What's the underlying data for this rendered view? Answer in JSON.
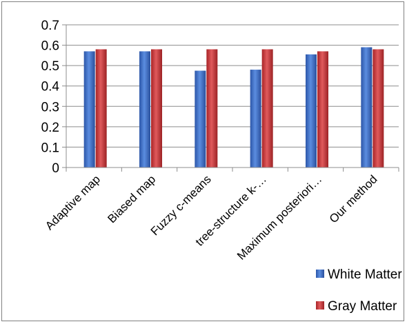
{
  "chart_data": {
    "type": "bar",
    "title": "",
    "xlabel": "",
    "ylabel": "",
    "categories": [
      "Adaptive map",
      "Biased map",
      "Fuzzy c-means",
      "tree-structure k-…",
      "Maximum posteriori…",
      "Our method"
    ],
    "ylim": [
      0,
      0.7
    ],
    "yticks": [
      "0",
      "0.1",
      "0.2",
      "0.3",
      "0.4",
      "0.5",
      "0.6",
      "0.7"
    ],
    "grid": true,
    "legend_position": "bottom-right",
    "series": [
      {
        "name": "White Matter",
        "color": "#3f6fcf",
        "values": [
          0.57,
          0.57,
          0.475,
          0.48,
          0.555,
          0.59
        ]
      },
      {
        "name": "Gray Matter",
        "color": "#c8383a",
        "values": [
          0.58,
          0.58,
          0.58,
          0.58,
          0.57,
          0.58
        ]
      }
    ]
  }
}
